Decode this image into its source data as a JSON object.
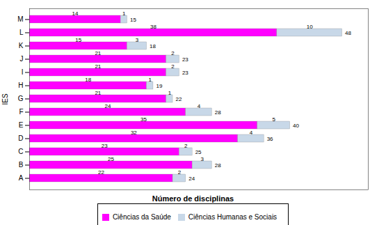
{
  "chart_data": {
    "type": "bar",
    "orientation": "horizontal",
    "stacked": true,
    "data_labels": true,
    "xlabel": "Número de disciplinas",
    "ylabel": "IES",
    "categories": [
      "A",
      "B",
      "C",
      "D",
      "E",
      "F",
      "G",
      "H",
      "I",
      "J",
      "K",
      "L",
      "M"
    ],
    "series": [
      {
        "name": "Ciências da Saúde",
        "color": "#FF00FF",
        "values": [
          22,
          25,
          23,
          32,
          35,
          24,
          21,
          18,
          21,
          21,
          15,
          38,
          14
        ]
      },
      {
        "name": "Ciências Humanas e Sociais",
        "color": "#C8D8E8",
        "values": [
          2,
          3,
          2,
          4,
          5,
          4,
          1,
          1,
          2,
          2,
          3,
          10,
          1
        ]
      }
    ],
    "totals": [
      24,
      28,
      25,
      36,
      40,
      28,
      22,
      19,
      23,
      23,
      18,
      48,
      15
    ],
    "xlim": [
      0,
      52
    ],
    "xticks": [],
    "tick_labels": "y",
    "grid": false,
    "legend": "bottom"
  }
}
